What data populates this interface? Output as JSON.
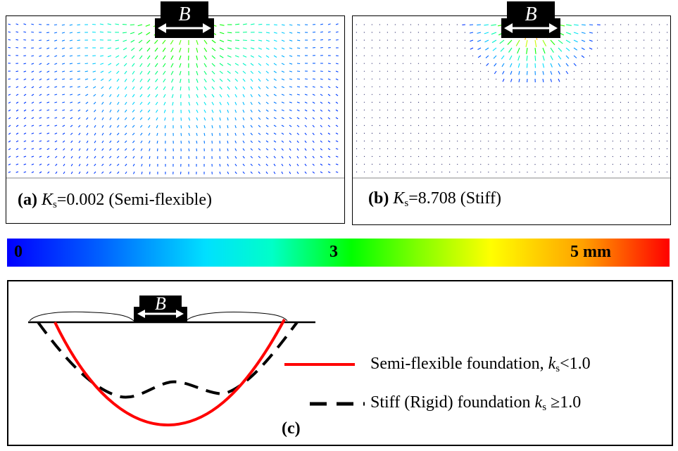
{
  "panel_a": {
    "tag": "(a)",
    "symbol": "K",
    "subscript": "s",
    "value_text": "=0.002 (Semi-flexible)",
    "footing_label": "B"
  },
  "panel_b": {
    "tag": "(b)",
    "symbol": "K",
    "subscript": "s",
    "value_text": "=8.708 (Stiff)",
    "footing_label": "B"
  },
  "colorbar": {
    "min_label": "0",
    "mid_label": "3",
    "max_label": "5 mm",
    "colors": [
      "#0000ff",
      "#00e0ff",
      "#00ff00",
      "#ffff00",
      "#ff0000"
    ]
  },
  "panel_c": {
    "tag": "(c)",
    "footing_label": "B",
    "legend": [
      {
        "prefix": "Semi-flexible foundation, ",
        "symbol": "k",
        "subscript": "s",
        "suffix": "<1.0",
        "color": "#ff0000",
        "style": "solid"
      },
      {
        "prefix": "Stiff (Rigid) foundation ",
        "symbol": "k",
        "subscript": "s",
        "suffix": " ≥1.0",
        "color": "#000000",
        "style": "dashed"
      }
    ]
  }
}
